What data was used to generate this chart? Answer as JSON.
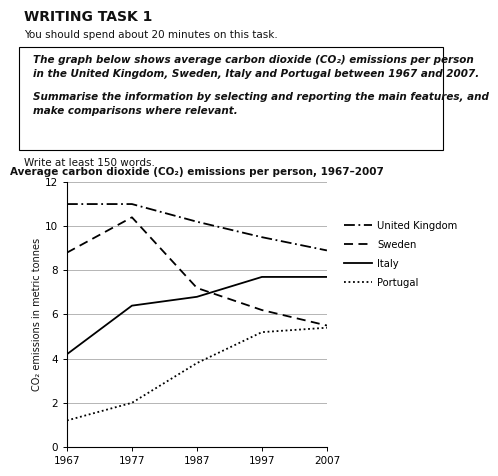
{
  "title": "Average carbon dioxide (CO₂) emissions per person, 1967–2007",
  "ylabel": "CO₂ emissions in metric tonnes",
  "years": [
    1967,
    1977,
    1987,
    1997,
    2007
  ],
  "uk": [
    11.0,
    11.0,
    10.2,
    9.5,
    8.9
  ],
  "sweden": [
    8.8,
    10.4,
    7.2,
    6.2,
    5.5
  ],
  "italy": [
    4.2,
    6.4,
    6.8,
    7.7,
    7.7
  ],
  "portugal": [
    1.2,
    2.0,
    3.8,
    5.2,
    5.4
  ],
  "ylim": [
    0,
    12
  ],
  "yticks": [
    0,
    2,
    4,
    6,
    8,
    10,
    12
  ],
  "xticks": [
    1967,
    1977,
    1987,
    1997,
    2007
  ],
  "writing_task_title": "WRITING TASK 1",
  "subtitle": "You should spend about 20 minutes on this task.",
  "box_line1": "The graph below shows average carbon dioxide (CO₂) emissions per person",
  "box_line2": "in the United Kingdom, Sweden, Italy and Portugal between 1967 and 2007.",
  "box_line3": "Summarise the information by selecting and reporting the main features, and",
  "box_line4": "make comparisons where relevant.",
  "write_text": "Write at least 150 words.",
  "color": "#111111",
  "bg_color": "#ffffff"
}
